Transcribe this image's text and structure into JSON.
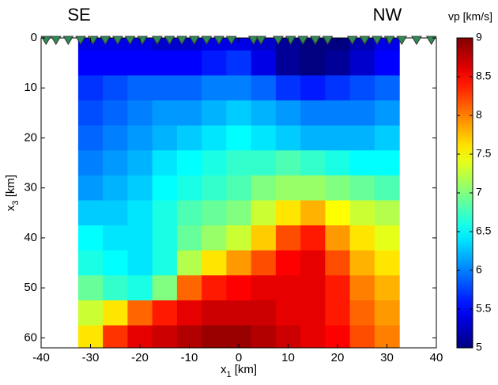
{
  "chart_data": {
    "type": "heatmap",
    "annotations": [
      "SE",
      "NW"
    ],
    "xlabel": "x1 [km]",
    "ylabel": "x3 [km]",
    "xlim": [
      -40,
      40
    ],
    "xticks": [
      -40,
      -30,
      -20,
      -10,
      0,
      10,
      20,
      30,
      40
    ],
    "ylim": [
      0,
      62
    ],
    "yticks": [
      0,
      10,
      20,
      30,
      40,
      50,
      60
    ],
    "y_reversed": true,
    "x": [
      -30,
      -25,
      -20,
      -15,
      -10,
      -5,
      0,
      5,
      10,
      15,
      20,
      25,
      30
    ],
    "y": [
      0,
      5,
      10,
      15,
      20,
      25,
      30,
      35,
      40,
      45,
      50,
      55,
      60
    ],
    "values": [
      [
        5.4,
        5.4,
        5.4,
        5.3,
        5.3,
        5.4,
        5.4,
        5.3,
        5.1,
        5.0,
        5.0,
        5.2,
        5.4
      ],
      [
        5.5,
        5.5,
        5.5,
        5.5,
        5.5,
        5.6,
        5.7,
        5.4,
        5.1,
        5.0,
        5.1,
        5.3,
        5.5
      ],
      [
        5.7,
        5.8,
        5.9,
        5.9,
        5.9,
        6.0,
        6.0,
        5.9,
        5.7,
        5.6,
        5.7,
        5.8,
        5.9
      ],
      [
        5.8,
        5.9,
        6.0,
        6.1,
        6.1,
        6.2,
        6.3,
        6.2,
        6.1,
        6.0,
        6.0,
        6.0,
        6.1
      ],
      [
        5.9,
        6.0,
        6.1,
        6.2,
        6.3,
        6.4,
        6.5,
        6.4,
        6.3,
        6.2,
        6.2,
        6.2,
        6.3
      ],
      [
        6.0,
        6.1,
        6.2,
        6.4,
        6.5,
        6.6,
        6.7,
        6.7,
        6.8,
        6.7,
        6.6,
        6.5,
        6.5
      ],
      [
        6.1,
        6.2,
        6.3,
        6.5,
        6.6,
        6.7,
        6.8,
        7.0,
        7.1,
        7.1,
        7.0,
        6.9,
        6.8
      ],
      [
        6.3,
        6.3,
        6.4,
        6.6,
        6.8,
        6.9,
        7.0,
        7.3,
        7.6,
        7.8,
        7.5,
        7.3,
        7.2
      ],
      [
        6.5,
        6.4,
        6.4,
        6.6,
        6.9,
        7.1,
        7.3,
        7.7,
        8.2,
        8.4,
        7.9,
        7.6,
        7.4
      ],
      [
        6.6,
        6.5,
        6.4,
        6.6,
        7.2,
        7.6,
        7.9,
        8.2,
        8.5,
        8.6,
        8.2,
        7.8,
        7.6
      ],
      [
        6.9,
        6.7,
        6.6,
        7.0,
        8.1,
        8.4,
        8.5,
        8.6,
        8.6,
        8.6,
        8.4,
        8.0,
        7.8
      ],
      [
        7.3,
        7.6,
        8.1,
        8.4,
        8.6,
        8.7,
        8.7,
        8.7,
        8.6,
        8.6,
        8.4,
        8.1,
        7.9
      ],
      [
        7.6,
        8.3,
        8.6,
        8.7,
        8.8,
        8.9,
        8.9,
        8.8,
        8.7,
        8.6,
        8.5,
        8.2,
        8.0
      ]
    ],
    "stations": [
      -39,
      -37,
      -34.5,
      -32,
      -29.5,
      -27,
      -24.5,
      -22,
      -19.5,
      -16.5,
      -14,
      -11.5,
      -9,
      -6.5,
      -4,
      -1.5,
      3,
      4.5,
      8,
      10.5,
      13,
      15.5,
      18,
      23,
      25.5,
      28,
      30.5,
      33,
      36,
      39
    ],
    "station_color": "#2e8b57",
    "colormap": "jet",
    "colorbar": {
      "label": "vp [km/s]",
      "lim": [
        5,
        9
      ],
      "ticks": [
        5,
        5.5,
        6,
        6.5,
        7,
        7.5,
        8,
        8.5,
        9
      ]
    }
  }
}
